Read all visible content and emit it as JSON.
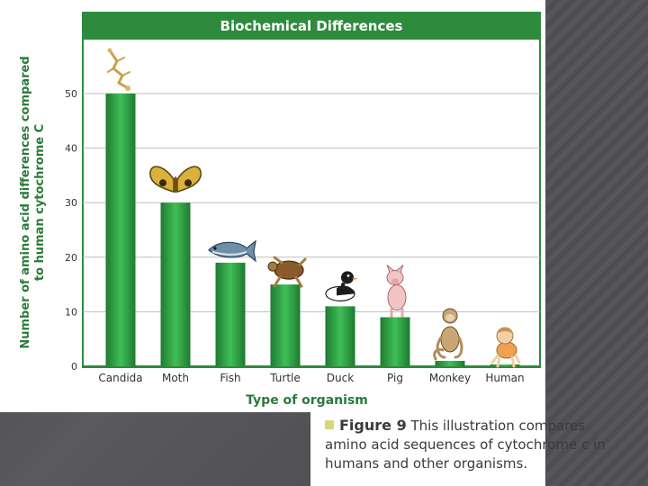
{
  "chart_data": {
    "type": "bar",
    "title": "Biochemical Differences",
    "xlabel": "Type of organism",
    "ylabel": "Number of amino acid differences compared to human cytochrome C",
    "ylabel_lines": [
      "Number of amino acid differences compared",
      "to human cytochrome C"
    ],
    "categories": [
      "Candida",
      "Moth",
      "Fish",
      "Turtle",
      "Duck",
      "Pig",
      "Monkey",
      "Human"
    ],
    "values": [
      50,
      30,
      19,
      15,
      11,
      9,
      1,
      0
    ],
    "yticks": [
      0,
      10,
      20,
      30,
      40,
      50
    ],
    "ylim": [
      0,
      60
    ],
    "grid": true,
    "colors": {
      "title_bar": "#2e8b3d",
      "bar_light": "#37b24d",
      "bar_dark": "#1e7a32",
      "axis_text": "#2a7a3a"
    },
    "pictures": [
      "candida-icon",
      "moth-icon",
      "fish-icon",
      "turtle-icon",
      "duck-icon",
      "pig-icon",
      "monkey-icon",
      "human-baby-icon"
    ]
  },
  "caption": {
    "figure_label": "Figure 9",
    "text": "This illustration compares amino acid sequences of cytochrome c in humans and other organisms."
  }
}
